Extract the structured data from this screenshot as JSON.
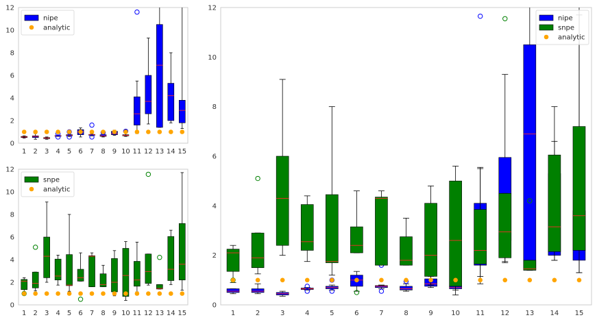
{
  "colors": {
    "nipe": "#0000ff",
    "snpe": "#008000",
    "analytic": "#ffa500",
    "median": "#ff2a2a",
    "whisker": "#000000",
    "axes_frame": "#cccccc"
  },
  "chart_data": [
    {
      "id": "top-left",
      "type": "box",
      "categories": [
        "1",
        "2",
        "3",
        "4",
        "5",
        "6",
        "7",
        "8",
        "9",
        "10",
        "11",
        "12",
        "13",
        "14",
        "15"
      ],
      "ylim": [
        0,
        12
      ],
      "yticks": [
        "0",
        "2",
        "4",
        "6",
        "8",
        "10",
        "12"
      ],
      "grid": false,
      "legend": {
        "placement": "top-left",
        "entries": [
          {
            "label": "nipe",
            "kind": "patch",
            "color": "#0000ff"
          },
          {
            "label": "analytic",
            "kind": "dot",
            "color": "#ffa500"
          }
        ]
      },
      "series": [
        {
          "name": "nipe",
          "color": "#0000ff",
          "boxes": [
            {
              "lo": 0.45,
              "q1": 0.5,
              "med": 0.55,
              "q3": 0.6,
              "hi": 0.65,
              "fliers": []
            },
            {
              "lo": 0.35,
              "q1": 0.5,
              "med": 0.6,
              "q3": 0.65,
              "hi": 0.85,
              "fliers": []
            },
            {
              "lo": 0.35,
              "q1": 0.4,
              "med": 0.45,
              "q3": 0.5,
              "hi": 0.55,
              "fliers": []
            },
            {
              "lo": 0.6,
              "q1": 0.62,
              "med": 0.65,
              "q3": 0.68,
              "hi": 0.7,
              "fliers": [
                0.55,
                0.85
              ]
            },
            {
              "lo": 0.6,
              "q1": 0.65,
              "med": 0.7,
              "q3": 0.75,
              "hi": 0.8,
              "fliers": [
                0.55,
                1.0
              ]
            },
            {
              "lo": 0.55,
              "q1": 0.75,
              "med": 1.0,
              "q3": 1.2,
              "hi": 1.35,
              "fliers": []
            },
            {
              "lo": 0.65,
              "q1": 0.7,
              "med": 0.75,
              "q3": 0.78,
              "hi": 0.8,
              "fliers": [
                0.55,
                1.6
              ]
            },
            {
              "lo": 0.55,
              "q1": 0.6,
              "med": 0.65,
              "q3": 0.75,
              "hi": 0.85,
              "fliers": [
                0.95
              ]
            },
            {
              "lo": 0.7,
              "q1": 0.75,
              "med": 0.85,
              "q3": 1.05,
              "hi": 1.15,
              "fliers": []
            },
            {
              "lo": 0.6,
              "q1": 0.65,
              "med": 0.7,
              "q3": 0.75,
              "hi": 1.2,
              "fliers": [
                1.05
              ]
            },
            {
              "lo": 0.85,
              "q1": 1.6,
              "med": 2.6,
              "q3": 4.1,
              "hi": 5.5,
              "fliers": [
                11.6
              ]
            },
            {
              "lo": 1.7,
              "q1": 2.6,
              "med": 3.7,
              "q3": 6.0,
              "hi": 9.3,
              "fliers": []
            },
            {
              "lo": 1.4,
              "q1": 1.4,
              "med": 6.9,
              "q3": 10.5,
              "hi": 12.3,
              "fliers": []
            },
            {
              "lo": 1.8,
              "q1": 2.0,
              "med": 4.2,
              "q3": 5.3,
              "hi": 8.0,
              "fliers": []
            },
            {
              "lo": 1.3,
              "q1": 1.8,
              "med": 2.9,
              "q3": 3.8,
              "hi": 12.2,
              "fliers": []
            }
          ]
        }
      ],
      "analytic": [
        1,
        1,
        1,
        1,
        1,
        1,
        1,
        1,
        1,
        1,
        1,
        1,
        1,
        1,
        1
      ]
    },
    {
      "id": "bottom-left",
      "type": "box",
      "categories": [
        "1",
        "2",
        "3",
        "4",
        "5",
        "6",
        "7",
        "8",
        "9",
        "10",
        "11",
        "12",
        "13",
        "14",
        "15"
      ],
      "ylim": [
        0,
        12
      ],
      "yticks": [
        "0",
        "2",
        "4",
        "6",
        "8",
        "10",
        "12"
      ],
      "grid": false,
      "legend": {
        "placement": "top-left",
        "entries": [
          {
            "label": "snpe",
            "kind": "patch",
            "color": "#008000"
          },
          {
            "label": "analytic",
            "kind": "dot",
            "color": "#ffa500"
          }
        ]
      },
      "series": [
        {
          "name": "snpe",
          "color": "#008000",
          "boxes": [
            {
              "lo": 0.9,
              "q1": 1.35,
              "med": 2.1,
              "q3": 2.25,
              "hi": 2.4,
              "fliers": [
                1.0
              ]
            },
            {
              "lo": 1.25,
              "q1": 1.5,
              "med": 1.9,
              "q3": 2.9,
              "hi": 2.9,
              "fliers": [
                5.1
              ]
            },
            {
              "lo": 2.0,
              "q1": 2.4,
              "med": 4.3,
              "q3": 6.0,
              "hi": 9.1,
              "fliers": []
            },
            {
              "lo": 1.75,
              "q1": 2.2,
              "med": 2.55,
              "q3": 4.05,
              "hi": 4.4,
              "fliers": []
            },
            {
              "lo": 1.2,
              "q1": 1.7,
              "med": 1.75,
              "q3": 4.45,
              "hi": 8.0,
              "fliers": []
            },
            {
              "lo": 2.1,
              "q1": 2.1,
              "med": 2.4,
              "q3": 3.15,
              "hi": 4.6,
              "fliers": [
                0.5
              ]
            },
            {
              "lo": 1.6,
              "q1": 1.6,
              "med": 4.3,
              "q3": 4.35,
              "hi": 4.6,
              "fliers": []
            },
            {
              "lo": 1.6,
              "q1": 1.6,
              "med": 1.8,
              "q3": 2.75,
              "hi": 3.5,
              "fliers": []
            },
            {
              "lo": 0.8,
              "q1": 1.15,
              "med": 2.0,
              "q3": 4.1,
              "hi": 4.8,
              "fliers": []
            },
            {
              "lo": 0.4,
              "q1": 0.75,
              "med": 2.6,
              "q3": 5.0,
              "hi": 5.6,
              "fliers": []
            },
            {
              "lo": 1.15,
              "q1": 1.65,
              "med": 2.2,
              "q3": 3.85,
              "hi": 5.55,
              "fliers": []
            },
            {
              "lo": 1.75,
              "q1": 1.9,
              "med": 2.95,
              "q3": 4.5,
              "hi": 4.5,
              "fliers": [
                11.55
              ]
            },
            {
              "lo": 1.4,
              "q1": 1.4,
              "med": 1.45,
              "q3": 1.8,
              "hi": 1.8,
              "fliers": [
                4.2
              ]
            },
            {
              "lo": 1.8,
              "q1": 2.15,
              "med": 3.15,
              "q3": 6.05,
              "hi": 6.6,
              "fliers": []
            },
            {
              "lo": 1.3,
              "q1": 2.2,
              "med": 3.6,
              "q3": 7.2,
              "hi": 11.7,
              "fliers": []
            }
          ]
        }
      ],
      "analytic": [
        1,
        1,
        1,
        1,
        1,
        1,
        1,
        1,
        1,
        1,
        1,
        1,
        1,
        1,
        1
      ]
    },
    {
      "id": "right",
      "type": "box",
      "categories": [
        "1",
        "2",
        "3",
        "4",
        "5",
        "6",
        "7",
        "8",
        "9",
        "10",
        "11",
        "12",
        "13",
        "14",
        "15"
      ],
      "ylim": [
        0,
        12
      ],
      "yticks": [
        "0",
        "2",
        "4",
        "6",
        "8",
        "10",
        "12"
      ],
      "grid": false,
      "legend": {
        "placement": "top-right",
        "entries": [
          {
            "label": "nipe",
            "kind": "patch",
            "color": "#0000ff"
          },
          {
            "label": "snpe",
            "kind": "patch",
            "color": "#008000"
          },
          {
            "label": "analytic",
            "kind": "dot",
            "color": "#ffa500"
          }
        ]
      },
      "series": [
        {
          "name": "nipe",
          "color": "#0000ff",
          "boxes": [
            {
              "lo": 0.45,
              "q1": 0.5,
              "med": 0.55,
              "q3": 0.65,
              "hi": 0.65,
              "fliers": []
            },
            {
              "lo": 0.45,
              "q1": 0.5,
              "med": 0.55,
              "q3": 0.65,
              "hi": 0.85,
              "fliers": []
            },
            {
              "lo": 0.35,
              "q1": 0.4,
              "med": 0.45,
              "q3": 0.5,
              "hi": 0.55,
              "fliers": []
            },
            {
              "lo": 0.6,
              "q1": 0.62,
              "med": 0.65,
              "q3": 0.68,
              "hi": 0.7,
              "fliers": [
                0.55,
                0.75
              ]
            },
            {
              "lo": 0.6,
              "q1": 0.65,
              "med": 0.7,
              "q3": 0.75,
              "hi": 0.8,
              "fliers": [
                0.55,
                1.0
              ]
            },
            {
              "lo": 0.55,
              "q1": 0.75,
              "med": 1.0,
              "q3": 1.2,
              "hi": 1.35,
              "fliers": []
            },
            {
              "lo": 0.65,
              "q1": 0.7,
              "med": 0.75,
              "q3": 0.78,
              "hi": 0.8,
              "fliers": [
                0.55,
                1.6
              ]
            },
            {
              "lo": 0.55,
              "q1": 0.6,
              "med": 0.65,
              "q3": 0.75,
              "hi": 0.85,
              "fliers": [
                0.95
              ]
            },
            {
              "lo": 0.7,
              "q1": 0.75,
              "med": 0.85,
              "q3": 1.05,
              "hi": 1.15,
              "fliers": []
            },
            {
              "lo": 0.6,
              "q1": 0.65,
              "med": 0.7,
              "q3": 0.75,
              "hi": 1.2,
              "fliers": [
                1.05
              ]
            },
            {
              "lo": 0.85,
              "q1": 1.6,
              "med": 2.6,
              "q3": 4.1,
              "hi": 5.5,
              "fliers": [
                11.65
              ]
            },
            {
              "lo": 1.7,
              "q1": 2.6,
              "med": 3.7,
              "q3": 5.95,
              "hi": 9.3,
              "fliers": []
            },
            {
              "lo": 1.4,
              "q1": 1.4,
              "med": 6.9,
              "q3": 10.5,
              "hi": 12.3,
              "fliers": []
            },
            {
              "lo": 1.8,
              "q1": 2.0,
              "med": 4.2,
              "q3": 5.3,
              "hi": 8.0,
              "fliers": []
            },
            {
              "lo": 1.3,
              "q1": 1.8,
              "med": 2.9,
              "q3": 3.8,
              "hi": 12.2,
              "fliers": []
            }
          ]
        },
        {
          "name": "snpe",
          "color": "#008000",
          "boxes": [
            {
              "lo": 0.9,
              "q1": 1.35,
              "med": 2.1,
              "q3": 2.25,
              "hi": 2.4,
              "fliers": [
                1.0
              ]
            },
            {
              "lo": 1.25,
              "q1": 1.5,
              "med": 1.9,
              "q3": 2.9,
              "hi": 2.9,
              "fliers": [
                5.1
              ]
            },
            {
              "lo": 2.0,
              "q1": 2.4,
              "med": 4.3,
              "q3": 6.0,
              "hi": 9.1,
              "fliers": []
            },
            {
              "lo": 1.75,
              "q1": 2.2,
              "med": 2.55,
              "q3": 4.05,
              "hi": 4.4,
              "fliers": []
            },
            {
              "lo": 1.2,
              "q1": 1.7,
              "med": 1.75,
              "q3": 4.45,
              "hi": 8.0,
              "fliers": []
            },
            {
              "lo": 2.1,
              "q1": 2.1,
              "med": 2.4,
              "q3": 3.15,
              "hi": 4.6,
              "fliers": [
                0.5
              ]
            },
            {
              "lo": 1.6,
              "q1": 1.6,
              "med": 4.3,
              "q3": 4.35,
              "hi": 4.6,
              "fliers": []
            },
            {
              "lo": 1.6,
              "q1": 1.6,
              "med": 1.8,
              "q3": 2.75,
              "hi": 3.5,
              "fliers": []
            },
            {
              "lo": 0.8,
              "q1": 1.15,
              "med": 2.0,
              "q3": 4.1,
              "hi": 4.8,
              "fliers": []
            },
            {
              "lo": 0.4,
              "q1": 0.75,
              "med": 2.6,
              "q3": 5.0,
              "hi": 5.6,
              "fliers": []
            },
            {
              "lo": 1.15,
              "q1": 1.65,
              "med": 2.2,
              "q3": 3.85,
              "hi": 5.55,
              "fliers": []
            },
            {
              "lo": 1.75,
              "q1": 1.9,
              "med": 2.95,
              "q3": 4.5,
              "hi": 4.5,
              "fliers": [
                11.55
              ]
            },
            {
              "lo": 1.4,
              "q1": 1.4,
              "med": 1.45,
              "q3": 1.8,
              "hi": 1.8,
              "fliers": [
                4.2
              ]
            },
            {
              "lo": 1.8,
              "q1": 2.15,
              "med": 3.15,
              "q3": 6.05,
              "hi": 6.6,
              "fliers": []
            },
            {
              "lo": 1.3,
              "q1": 2.2,
              "med": 3.6,
              "q3": 7.2,
              "hi": 11.7,
              "fliers": []
            }
          ]
        }
      ],
      "analytic": [
        1,
        1,
        1,
        1,
        1,
        1,
        1,
        1,
        1,
        1,
        1,
        1,
        1,
        1,
        1
      ]
    }
  ]
}
